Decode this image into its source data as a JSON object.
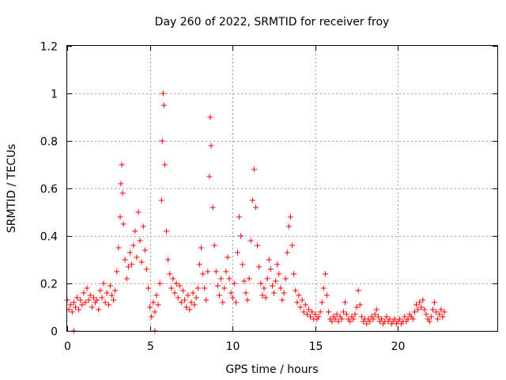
{
  "chart_data": {
    "type": "scatter",
    "title": "Day 260 of 2022, SRMTID for receiver froy",
    "xlabel": "GPS time / hours",
    "ylabel": "SRMTID / TECUs",
    "xlim": [
      0,
      26
    ],
    "ylim": [
      0,
      1.2
    ],
    "xticks": [
      0,
      5,
      10,
      15,
      20
    ],
    "xtick_labels": [
      "0",
      "5",
      "10",
      "15",
      "20"
    ],
    "yticks": [
      0,
      0.2,
      0.4,
      0.6,
      0.8,
      1,
      1.2
    ],
    "ytick_labels": [
      "0",
      "0.2",
      "0.4",
      "0.6",
      "0.8",
      "1",
      "1.2"
    ],
    "grid": true,
    "marker": "+",
    "color": "#ff0000",
    "series": [
      {
        "name": "SRMTID",
        "points": [
          [
            0.0,
            0.13
          ],
          [
            0.1,
            0.09
          ],
          [
            0.2,
            0.11
          ],
          [
            0.3,
            0.08
          ],
          [
            0.4,
            0.12
          ],
          [
            0.5,
            0.1
          ],
          [
            0.6,
            0.14
          ],
          [
            0.7,
            0.09
          ],
          [
            0.8,
            0.13
          ],
          [
            0.9,
            0.11
          ],
          [
            1.0,
            0.16
          ],
          [
            1.1,
            0.12
          ],
          [
            1.2,
            0.18
          ],
          [
            1.3,
            0.13
          ],
          [
            1.4,
            0.15
          ],
          [
            1.5,
            0.1
          ],
          [
            1.6,
            0.14
          ],
          [
            1.7,
            0.12
          ],
          [
            1.8,
            0.13
          ],
          [
            1.9,
            0.09
          ],
          [
            2.0,
            0.17
          ],
          [
            2.1,
            0.14
          ],
          [
            2.2,
            0.2
          ],
          [
            2.3,
            0.12
          ],
          [
            2.4,
            0.16
          ],
          [
            2.5,
            0.11
          ],
          [
            2.6,
            0.19
          ],
          [
            2.7,
            0.15
          ],
          [
            2.8,
            0.13
          ],
          [
            2.9,
            0.17
          ],
          [
            3.0,
            0.25
          ],
          [
            3.1,
            0.35
          ],
          [
            3.2,
            0.48
          ],
          [
            3.25,
            0.62
          ],
          [
            3.3,
            0.7
          ],
          [
            3.35,
            0.58
          ],
          [
            3.4,
            0.45
          ],
          [
            3.5,
            0.3
          ],
          [
            3.6,
            0.22
          ],
          [
            3.7,
            0.27
          ],
          [
            3.8,
            0.33
          ],
          [
            3.9,
            0.28
          ],
          [
            4.0,
            0.36
          ],
          [
            4.1,
            0.42
          ],
          [
            4.2,
            0.31
          ],
          [
            4.3,
            0.5
          ],
          [
            4.4,
            0.38
          ],
          [
            4.5,
            0.29
          ],
          [
            4.6,
            0.44
          ],
          [
            4.7,
            0.34
          ],
          [
            4.8,
            0.26
          ],
          [
            4.9,
            0.18
          ],
          [
            5.0,
            0.1
          ],
          [
            5.1,
            0.06
          ],
          [
            5.2,
            0.12
          ],
          [
            5.3,
            0.08
          ],
          [
            5.4,
            0.15
          ],
          [
            5.5,
            0.11
          ],
          [
            5.6,
            0.2
          ],
          [
            5.7,
            0.55
          ],
          [
            5.75,
            0.8
          ],
          [
            5.8,
            1.0
          ],
          [
            5.85,
            0.95
          ],
          [
            5.9,
            0.7
          ],
          [
            6.0,
            0.42
          ],
          [
            6.1,
            0.3
          ],
          [
            6.2,
            0.24
          ],
          [
            6.3,
            0.18
          ],
          [
            6.4,
            0.22
          ],
          [
            6.5,
            0.16
          ],
          [
            6.6,
            0.2
          ],
          [
            6.7,
            0.14
          ],
          [
            6.8,
            0.19
          ],
          [
            6.9,
            0.12
          ],
          [
            7.0,
            0.17
          ],
          [
            7.1,
            0.13
          ],
          [
            7.2,
            0.1
          ],
          [
            7.3,
            0.15
          ],
          [
            7.4,
            0.09
          ],
          [
            7.5,
            0.12
          ],
          [
            7.6,
            0.16
          ],
          [
            7.7,
            0.11
          ],
          [
            7.8,
            0.14
          ],
          [
            7.9,
            0.18
          ],
          [
            8.0,
            0.28
          ],
          [
            8.1,
            0.35
          ],
          [
            8.2,
            0.24
          ],
          [
            8.3,
            0.18
          ],
          [
            8.4,
            0.13
          ],
          [
            8.5,
            0.25
          ],
          [
            8.6,
            0.65
          ],
          [
            8.65,
            0.9
          ],
          [
            8.7,
            0.78
          ],
          [
            8.8,
            0.52
          ],
          [
            8.9,
            0.36
          ],
          [
            9.0,
            0.25
          ],
          [
            9.1,
            0.19
          ],
          [
            9.2,
            0.15
          ],
          [
            9.3,
            0.22
          ],
          [
            9.4,
            0.12
          ],
          [
            9.5,
            0.18
          ],
          [
            9.6,
            0.25
          ],
          [
            9.7,
            0.31
          ],
          [
            9.8,
            0.22
          ],
          [
            9.9,
            0.16
          ],
          [
            10.0,
            0.14
          ],
          [
            10.1,
            0.2
          ],
          [
            10.2,
            0.12
          ],
          [
            10.3,
            0.33
          ],
          [
            10.4,
            0.48
          ],
          [
            10.5,
            0.4
          ],
          [
            10.6,
            0.28
          ],
          [
            10.7,
            0.21
          ],
          [
            10.8,
            0.16
          ],
          [
            10.9,
            0.13
          ],
          [
            11.0,
            0.22
          ],
          [
            11.1,
            0.38
          ],
          [
            11.2,
            0.55
          ],
          [
            11.3,
            0.68
          ],
          [
            11.4,
            0.52
          ],
          [
            11.5,
            0.36
          ],
          [
            11.6,
            0.27
          ],
          [
            11.7,
            0.2
          ],
          [
            11.8,
            0.15
          ],
          [
            11.9,
            0.18
          ],
          [
            12.0,
            0.14
          ],
          [
            12.1,
            0.22
          ],
          [
            12.2,
            0.3
          ],
          [
            12.3,
            0.26
          ],
          [
            12.4,
            0.19
          ],
          [
            12.5,
            0.16
          ],
          [
            12.6,
            0.21
          ],
          [
            12.7,
            0.28
          ],
          [
            12.8,
            0.24
          ],
          [
            12.9,
            0.18
          ],
          [
            13.0,
            0.13
          ],
          [
            13.1,
            0.16
          ],
          [
            13.2,
            0.22
          ],
          [
            13.3,
            0.33
          ],
          [
            13.4,
            0.44
          ],
          [
            13.5,
            0.48
          ],
          [
            13.6,
            0.36
          ],
          [
            13.7,
            0.24
          ],
          [
            13.8,
            0.17
          ],
          [
            13.9,
            0.12
          ],
          [
            14.0,
            0.15
          ],
          [
            14.1,
            0.1
          ],
          [
            14.2,
            0.13
          ],
          [
            14.3,
            0.08
          ],
          [
            14.4,
            0.11
          ],
          [
            14.5,
            0.07
          ],
          [
            14.6,
            0.09
          ],
          [
            14.7,
            0.06
          ],
          [
            14.8,
            0.08
          ],
          [
            14.9,
            0.05
          ],
          [
            15.0,
            0.07
          ],
          [
            15.1,
            0.05
          ],
          [
            15.2,
            0.06
          ],
          [
            15.3,
            0.08
          ],
          [
            15.4,
            0.12
          ],
          [
            15.5,
            0.18
          ],
          [
            15.6,
            0.24
          ],
          [
            15.7,
            0.15
          ],
          [
            15.8,
            0.08
          ],
          [
            15.9,
            0.05
          ],
          [
            16.0,
            0.04
          ],
          [
            16.1,
            0.06
          ],
          [
            16.2,
            0.05
          ],
          [
            16.3,
            0.07
          ],
          [
            16.4,
            0.04
          ],
          [
            16.5,
            0.06
          ],
          [
            16.6,
            0.05
          ],
          [
            16.7,
            0.08
          ],
          [
            16.8,
            0.12
          ],
          [
            16.9,
            0.07
          ],
          [
            17.0,
            0.05
          ],
          [
            17.1,
            0.04
          ],
          [
            17.2,
            0.06
          ],
          [
            17.3,
            0.05
          ],
          [
            17.4,
            0.07
          ],
          [
            17.5,
            0.1
          ],
          [
            17.6,
            0.17
          ],
          [
            17.7,
            0.11
          ],
          [
            17.8,
            0.06
          ],
          [
            17.9,
            0.04
          ],
          [
            18.0,
            0.05
          ],
          [
            18.1,
            0.03
          ],
          [
            18.2,
            0.05
          ],
          [
            18.3,
            0.04
          ],
          [
            18.4,
            0.06
          ],
          [
            18.5,
            0.05
          ],
          [
            18.6,
            0.07
          ],
          [
            18.7,
            0.09
          ],
          [
            18.8,
            0.06
          ],
          [
            18.9,
            0.04
          ],
          [
            19.0,
            0.05
          ],
          [
            19.1,
            0.03
          ],
          [
            19.2,
            0.04
          ],
          [
            19.3,
            0.06
          ],
          [
            19.4,
            0.04
          ],
          [
            19.5,
            0.05
          ],
          [
            19.6,
            0.03
          ],
          [
            19.7,
            0.04
          ],
          [
            19.8,
            0.05
          ],
          [
            19.9,
            0.03
          ],
          [
            20.0,
            0.04
          ],
          [
            20.1,
            0.05
          ],
          [
            20.2,
            0.03
          ],
          [
            20.3,
            0.04
          ],
          [
            20.4,
            0.06
          ],
          [
            20.5,
            0.04
          ],
          [
            20.6,
            0.05
          ],
          [
            20.7,
            0.07
          ],
          [
            20.8,
            0.06
          ],
          [
            20.9,
            0.05
          ],
          [
            21.0,
            0.08
          ],
          [
            21.1,
            0.11
          ],
          [
            21.2,
            0.09
          ],
          [
            21.3,
            0.12
          ],
          [
            21.4,
            0.1
          ],
          [
            21.5,
            0.13
          ],
          [
            21.6,
            0.09
          ],
          [
            21.7,
            0.07
          ],
          [
            21.8,
            0.05
          ],
          [
            21.9,
            0.04
          ],
          [
            22.0,
            0.06
          ],
          [
            22.1,
            0.09
          ],
          [
            22.2,
            0.12
          ],
          [
            22.3,
            0.08
          ],
          [
            22.4,
            0.05
          ],
          [
            22.5,
            0.07
          ],
          [
            22.6,
            0.09
          ],
          [
            22.7,
            0.06
          ],
          [
            22.8,
            0.08
          ],
          [
            0.4,
            0.0
          ],
          [
            5.3,
            0.0
          ]
        ]
      }
    ]
  }
}
